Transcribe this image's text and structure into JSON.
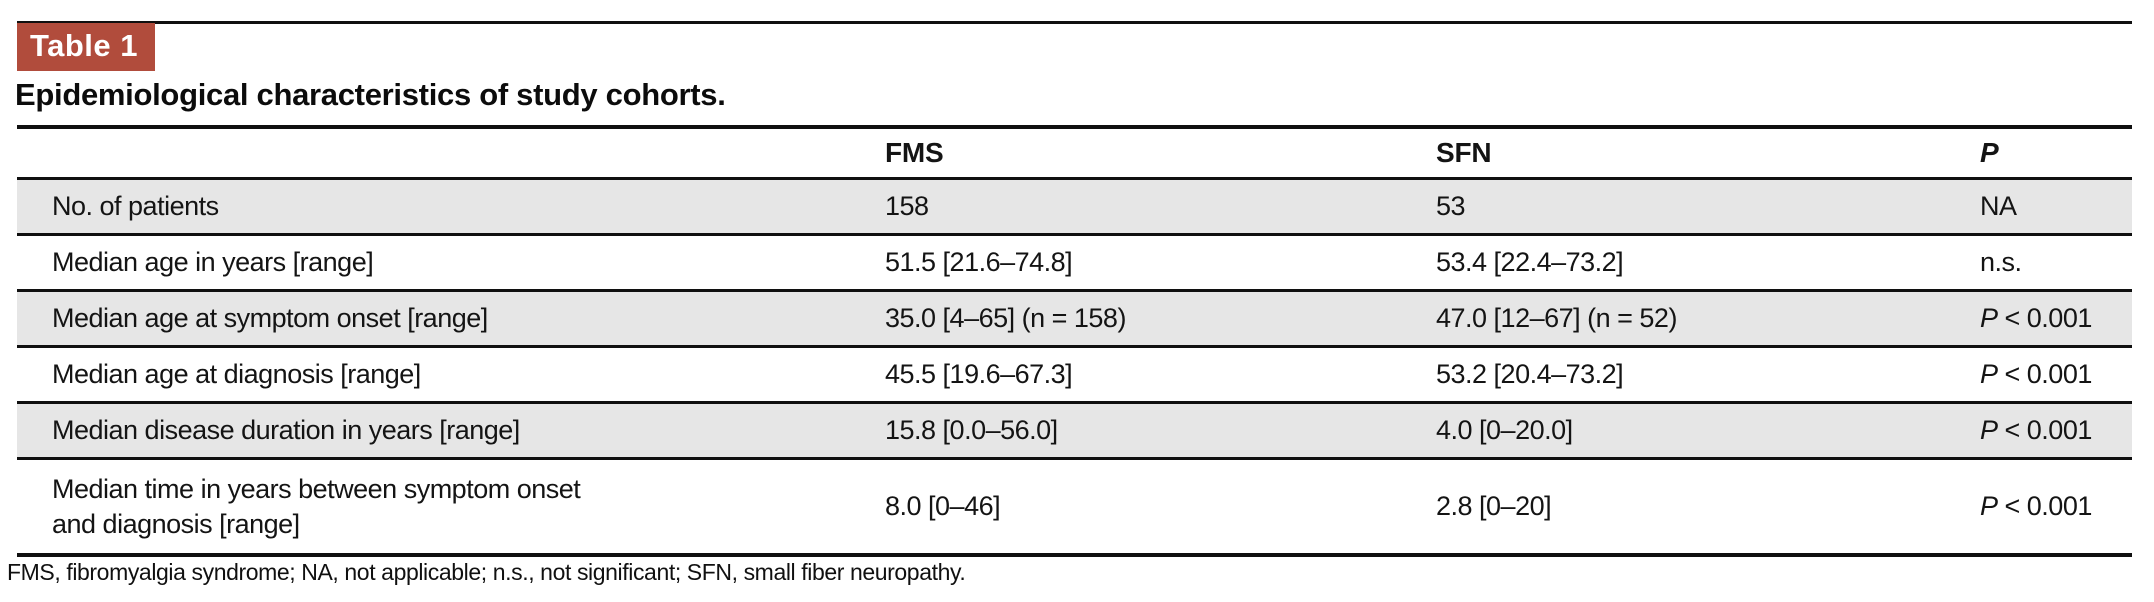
{
  "badge": {
    "label": "Table 1",
    "color": "#b14c3c"
  },
  "title": "Epidemiological characteristics of study cohorts.",
  "table": {
    "columns": {
      "label": "",
      "fms": "FMS",
      "sfn": "SFN",
      "p": "P"
    },
    "rows": [
      {
        "label": "No. of patients",
        "fms": "158",
        "sfn": "53",
        "p": {
          "prefix": "",
          "rest": "NA"
        }
      },
      {
        "label": "Median age in years [range]",
        "fms": "51.5 [21.6–74.8]",
        "sfn": "53.4 [22.4–73.2]",
        "p": {
          "prefix": "",
          "rest": "n.s."
        }
      },
      {
        "label": "Median age at symptom onset [range]",
        "fms": "35.0 [4–65] (n = 158)",
        "sfn": "47.0 [12–67] (n = 52)",
        "p": {
          "prefix": "P",
          "rest": " < 0.001"
        }
      },
      {
        "label": "Median age at diagnosis [range]",
        "fms": "45.5 [19.6–67.3]",
        "sfn": "53.2 [20.4–73.2]",
        "p": {
          "prefix": "P",
          "rest": " < 0.001"
        }
      },
      {
        "label": "Median disease duration in years [range]",
        "fms": "15.8 [0.0–56.0]",
        "sfn": "4.0 [0–20.0]",
        "p": {
          "prefix": "P",
          "rest": " < 0.001"
        }
      },
      {
        "label": "Median time in years between symptom onset\nand diagnosis [range]",
        "fms": "8.0 [0–46]",
        "sfn": "2.8 [0–20]",
        "p": {
          "prefix": "P",
          "rest": " < 0.001"
        }
      }
    ]
  },
  "footnote": "FMS, fibromyalgia syndrome; NA, not applicable; n.s., not significant; SFN, small fiber neuropathy.",
  "colors": {
    "badge_red": "#b14c3c",
    "row_shade_gray": "#e6e6e6",
    "rule_black": "#101010",
    "background": "#ffffff"
  },
  "chart_data": {
    "type": "table",
    "title": "Table 1. Epidemiological characteristics of study cohorts.",
    "columns": [
      "",
      "FMS",
      "SFN",
      "P"
    ],
    "rows": [
      [
        "No. of patients",
        "158",
        "53",
        "NA"
      ],
      [
        "Median age in years [range]",
        "51.5 [21.6–74.8]",
        "53.4 [22.4–73.2]",
        "n.s."
      ],
      [
        "Median age at symptom onset [range]",
        "35.0 [4–65] (n = 158)",
        "47.0 [12–67] (n = 52)",
        "P < 0.001"
      ],
      [
        "Median age at diagnosis [range]",
        "45.5 [19.6–67.3]",
        "53.2 [20.4–73.2]",
        "P < 0.001"
      ],
      [
        "Median disease duration in years [range]",
        "15.8 [0.0–56.0]",
        "4.0 [0–20.0]",
        "P < 0.001"
      ],
      [
        "Median time in years between symptom onset and diagnosis [range]",
        "8.0 [0–46]",
        "2.8 [0–20]",
        "P < 0.001"
      ]
    ],
    "footnote": "FMS, fibromyalgia syndrome; NA, not applicable; n.s., not significant; SFN, small fiber neuropathy."
  }
}
